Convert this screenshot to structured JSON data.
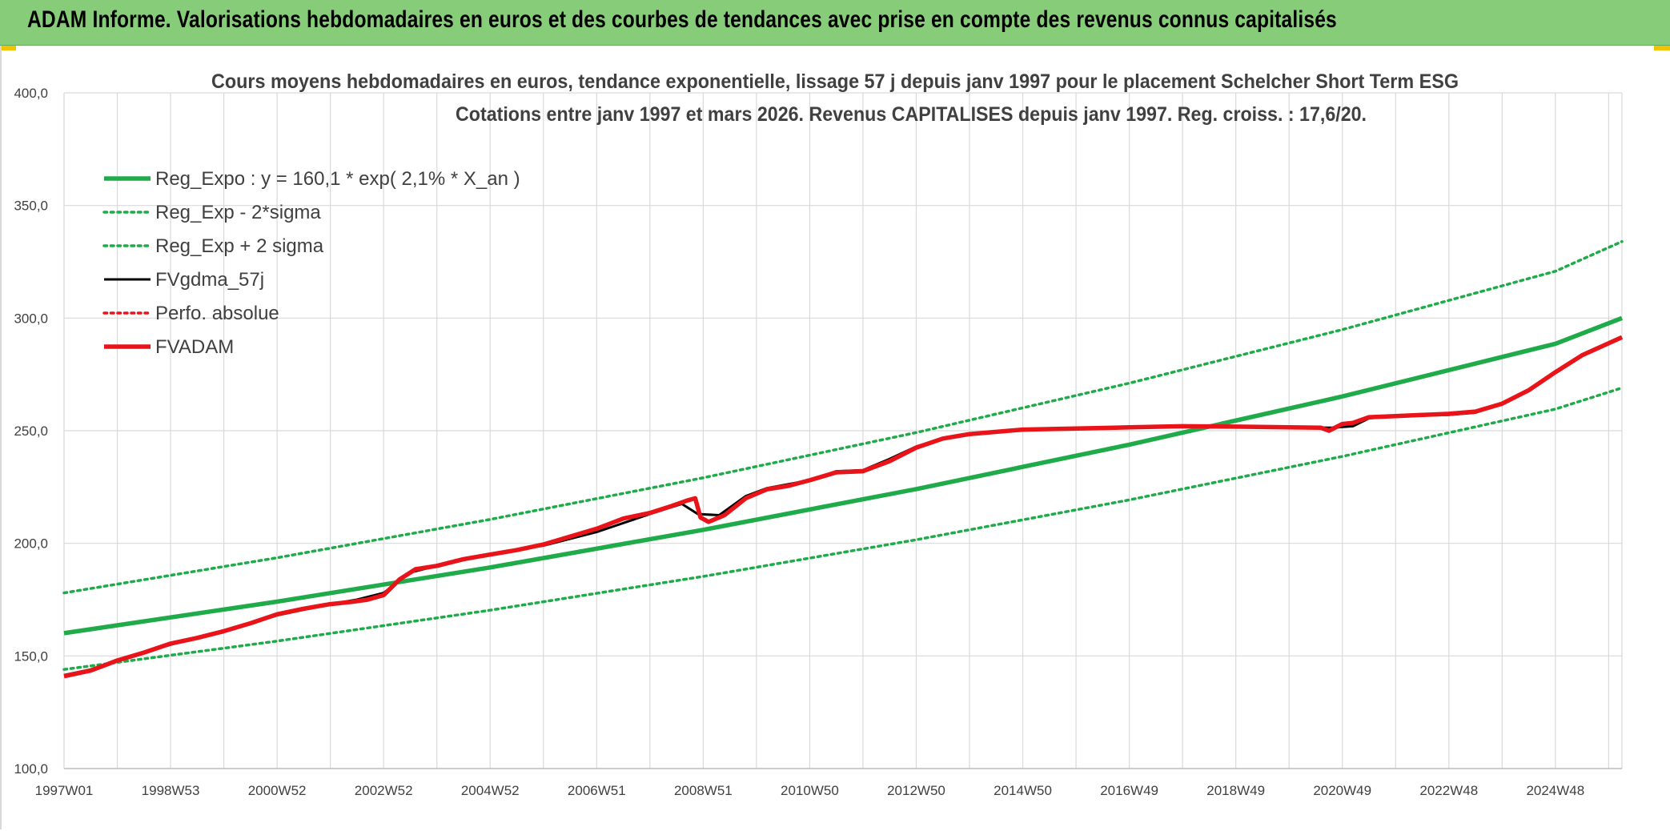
{
  "banner": {
    "title": "ADAM Informe. Valorisations hebdomadaires en euros et des courbes de tendances avec prise en compte des revenus connus capitalisés"
  },
  "colors": {
    "banner_bg": "#87cc78",
    "reg_expo": "#1fab4a",
    "fvgdma": "#000000",
    "fvadam": "#e8141a",
    "perfo": "#e8141a",
    "grid": "#d9d9d9",
    "text": "#404040"
  },
  "chart_data": {
    "type": "line",
    "title_line1": "Cours moyens hebdomadaires en euros, tendance exponentielle, lissage 57 j depuis janv 1997 pour le placement Schelcher Short Term ESG",
    "title_line2": "Cotations entre janv 1997 et mars 2026. Revenus CAPITALISES depuis janv 1997. Reg. croiss. : 17,6/20.",
    "x_unit": "years since 1997-01",
    "xlim": [
      0,
      29.25
    ],
    "ylim": [
      100,
      400
    ],
    "y_ticks": [
      {
        "value": 100,
        "label": "100,0"
      },
      {
        "value": 150,
        "label": "150,0"
      },
      {
        "value": 200,
        "label": "200,0"
      },
      {
        "value": 250,
        "label": "250,0"
      },
      {
        "value": 300,
        "label": "300,0"
      },
      {
        "value": 350,
        "label": "350,0"
      },
      {
        "value": 400,
        "label": "400,0"
      }
    ],
    "x_ticks": [
      {
        "value": 0,
        "label": "1997W01"
      },
      {
        "value": 2,
        "label": "1998W53"
      },
      {
        "value": 4,
        "label": "2000W52"
      },
      {
        "value": 6,
        "label": "2002W52"
      },
      {
        "value": 8,
        "label": "2004W52"
      },
      {
        "value": 10,
        "label": "2006W51"
      },
      {
        "value": 12,
        "label": "2008W51"
      },
      {
        "value": 14,
        "label": "2010W50"
      },
      {
        "value": 16,
        "label": "2012W50"
      },
      {
        "value": 18,
        "label": "2014W50"
      },
      {
        "value": 20,
        "label": "2016W49"
      },
      {
        "value": 22,
        "label": "2018W49"
      },
      {
        "value": 24,
        "label": "2020W49"
      },
      {
        "value": 26,
        "label": "2022W48"
      },
      {
        "value": 28,
        "label": "2024W48"
      }
    ],
    "grid": true,
    "legend_position": "top-left",
    "series": [
      {
        "name": "Reg_Expo : y = 160,1 * exp( 2,1% *  X_an )",
        "style": "solid-thick",
        "color": "#1fab4a",
        "x": [
          0,
          4,
          8,
          12,
          16,
          20,
          24,
          28,
          29.25
        ],
        "y": [
          160.1,
          174.1,
          189.3,
          206.0,
          224.1,
          243.8,
          265.2,
          288.6,
          300.0
        ]
      },
      {
        "name": "Reg_Exp - 2*sigma",
        "style": "dotted",
        "color": "#1fab4a",
        "x": [
          0,
          4,
          8,
          12,
          16,
          20,
          24,
          28,
          29.25
        ],
        "y": [
          144.0,
          156.6,
          170.3,
          185.3,
          201.6,
          219.3,
          238.6,
          259.6,
          269.0
        ]
      },
      {
        "name": "Reg_Exp + 2 sigma",
        "style": "dotted",
        "color": "#1fab4a",
        "x": [
          0,
          4,
          8,
          12,
          16,
          20,
          24,
          28,
          29.25
        ],
        "y": [
          178.0,
          193.6,
          210.6,
          229.1,
          249.2,
          271.1,
          294.9,
          320.8,
          334.0
        ]
      },
      {
        "name": "FVgdma_57j",
        "style": "solid",
        "color": "#000000",
        "x": [
          0,
          0.5,
          1,
          2,
          3,
          4,
          5,
          5.5,
          6,
          6.5,
          7,
          8,
          9,
          10,
          10.5,
          11,
          11.6,
          11.9,
          12.3,
          12.8,
          13.2,
          14,
          14.5,
          15,
          15.5,
          16,
          16.5,
          17,
          18,
          19,
          20,
          21,
          22,
          23,
          23.8,
          24.2,
          24.5,
          25,
          26,
          26.5,
          27,
          27.5,
          28,
          28.5,
          29.25
        ],
        "y": [
          141.5,
          144,
          148,
          155,
          161,
          168,
          173,
          175,
          178,
          187,
          190,
          195,
          199,
          205,
          209,
          213,
          217.5,
          213,
          212.5,
          221,
          224.5,
          228,
          232,
          232.5,
          237.5,
          243,
          246.5,
          248.5,
          250.5,
          251,
          251.5,
          252,
          251.8,
          251.5,
          251.3,
          252,
          255.5,
          256.5,
          257,
          258,
          262,
          268,
          276,
          283.5,
          291.5
        ]
      },
      {
        "name": "Perfo. absolue",
        "style": "dotted",
        "color": "#e8141a",
        "x": [],
        "y": []
      },
      {
        "name": "FVADAM",
        "style": "solid-thick",
        "color": "#e8141a",
        "x": [
          0,
          0.5,
          1,
          1.5,
          2,
          2.5,
          3,
          3.5,
          4,
          4.5,
          5,
          5.4,
          5.7,
          6,
          6.3,
          6.6,
          7,
          7.5,
          8,
          8.5,
          9,
          9.5,
          10,
          10.5,
          11,
          11.4,
          11.7,
          11.85,
          11.95,
          12.1,
          12.4,
          12.8,
          13.2,
          13.6,
          14,
          14.5,
          15,
          15.5,
          16,
          16.5,
          17,
          18,
          19,
          20,
          21,
          22,
          23,
          23.6,
          23.75,
          24.0,
          24.2,
          24.5,
          25,
          25.5,
          26,
          26.5,
          27,
          27.5,
          28,
          28.5,
          29.25
        ],
        "y": [
          141,
          143.5,
          148,
          151.5,
          155.5,
          158,
          161,
          164.5,
          168.5,
          171,
          173,
          174,
          175,
          177,
          184,
          188.5,
          190,
          193,
          195,
          197,
          199.5,
          203,
          206.5,
          211,
          213.5,
          216.5,
          219,
          220,
          211.5,
          209.5,
          212.5,
          220,
          224,
          225.5,
          228,
          231.5,
          232,
          236.5,
          242.5,
          246.5,
          248.5,
          250.5,
          251,
          251.5,
          252,
          251.8,
          251.5,
          251.3,
          250,
          253,
          253.5,
          256,
          256.5,
          257,
          257.5,
          258.5,
          262,
          268,
          276,
          283.5,
          291.5
        ]
      }
    ]
  }
}
